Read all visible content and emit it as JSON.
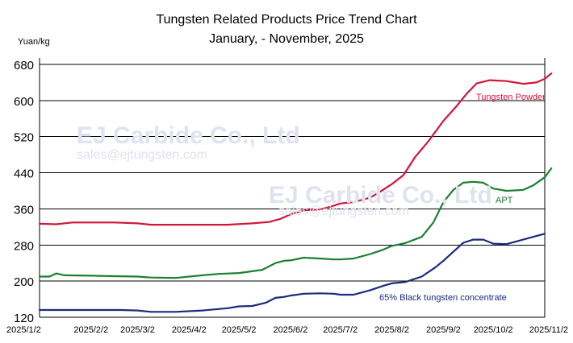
{
  "chart_data": {
    "type": "line",
    "title": "Tungsten Related Products Price Trend Chart",
    "subtitle": "January, - November, 2025",
    "ylabel": "Yuan/kg",
    "xlabel": "",
    "ylim": [
      120,
      680
    ],
    "yticks": [
      120,
      200,
      280,
      360,
      440,
      520,
      600,
      680
    ],
    "grid": true,
    "x_ticks": [
      "2025/1/2",
      "2025/2/2",
      "2025/3/2",
      "2025/4/2",
      "2025/5/2",
      "2025/6/2",
      "2025/7/2",
      "2025/8/2",
      "2025/9/2",
      "2025/10/2",
      "2025/11/2"
    ],
    "series": [
      {
        "name": "Tungsten Powder",
        "color": "#d0163c",
        "points": [
          [
            "2025/1/2",
            327
          ],
          [
            "2025/1/12",
            326
          ],
          [
            "2025/1/22",
            330
          ],
          [
            "2025/2/2",
            330
          ],
          [
            "2025/2/16",
            330
          ],
          [
            "2025/3/2",
            328
          ],
          [
            "2025/3/10",
            325
          ],
          [
            "2025/3/25",
            325
          ],
          [
            "2025/4/10",
            325
          ],
          [
            "2025/4/25",
            325
          ],
          [
            "2025/5/10",
            328
          ],
          [
            "2025/5/20",
            331
          ],
          [
            "2025/5/27",
            338
          ],
          [
            "2025/6/2",
            348
          ],
          [
            "2025/6/10",
            357
          ],
          [
            "2025/6/20",
            359
          ],
          [
            "2025/6/28",
            367
          ],
          [
            "2025/7/2",
            372
          ],
          [
            "2025/7/10",
            375
          ],
          [
            "2025/7/20",
            385
          ],
          [
            "2025/7/26",
            398
          ],
          [
            "2025/8/2",
            415
          ],
          [
            "2025/8/9",
            435
          ],
          [
            "2025/8/16",
            475
          ],
          [
            "2025/8/24",
            510
          ],
          [
            "2025/9/2",
            555
          ],
          [
            "2025/9/10",
            588
          ],
          [
            "2025/9/16",
            615
          ],
          [
            "2025/9/22",
            638
          ],
          [
            "2025/9/30",
            645
          ],
          [
            "2025/10/10",
            643
          ],
          [
            "2025/10/20",
            637
          ],
          [
            "2025/10/28",
            640
          ],
          [
            "2025/11/2",
            648
          ],
          [
            "2025/11/6",
            660
          ]
        ]
      },
      {
        "name": "APT",
        "color": "#1a8034",
        "points": [
          [
            "2025/1/2",
            210
          ],
          [
            "2025/1/8",
            210
          ],
          [
            "2025/1/12",
            217
          ],
          [
            "2025/1/17",
            213
          ],
          [
            "2025/2/2",
            212
          ],
          [
            "2025/2/16",
            211
          ],
          [
            "2025/3/2",
            210
          ],
          [
            "2025/3/10",
            208
          ],
          [
            "2025/3/25",
            207
          ],
          [
            "2025/4/10",
            213
          ],
          [
            "2025/4/20",
            216
          ],
          [
            "2025/5/2",
            218
          ],
          [
            "2025/5/16",
            225
          ],
          [
            "2025/5/24",
            240
          ],
          [
            "2025/5/29",
            245
          ],
          [
            "2025/6/2",
            246
          ],
          [
            "2025/6/10",
            252
          ],
          [
            "2025/6/20",
            250
          ],
          [
            "2025/6/28",
            248
          ],
          [
            "2025/7/2",
            248
          ],
          [
            "2025/7/10",
            250
          ],
          [
            "2025/7/20",
            260
          ],
          [
            "2025/7/28",
            270
          ],
          [
            "2025/8/2",
            278
          ],
          [
            "2025/8/10",
            284
          ],
          [
            "2025/8/20",
            298
          ],
          [
            "2025/8/27",
            330
          ],
          [
            "2025/9/2",
            375
          ],
          [
            "2025/9/8",
            402
          ],
          [
            "2025/9/14",
            418
          ],
          [
            "2025/9/20",
            420
          ],
          [
            "2025/9/26",
            418
          ],
          [
            "2025/10/2",
            405
          ],
          [
            "2025/10/10",
            400
          ],
          [
            "2025/10/20",
            402
          ],
          [
            "2025/10/26",
            412
          ],
          [
            "2025/11/2",
            430
          ],
          [
            "2025/11/6",
            450
          ]
        ]
      },
      {
        "name": "65% Black tungsten concentrate",
        "color": "#1b2c7c",
        "points": [
          [
            "2025/1/2",
            136
          ],
          [
            "2025/2/2",
            136
          ],
          [
            "2025/2/20",
            136
          ],
          [
            "2025/3/2",
            135
          ],
          [
            "2025/3/10",
            132
          ],
          [
            "2025/3/25",
            132
          ],
          [
            "2025/4/10",
            135
          ],
          [
            "2025/4/25",
            140
          ],
          [
            "2025/5/2",
            144
          ],
          [
            "2025/5/10",
            145
          ],
          [
            "2025/5/18",
            152
          ],
          [
            "2025/5/24",
            163
          ],
          [
            "2025/5/29",
            165
          ],
          [
            "2025/6/2",
            168
          ],
          [
            "2025/6/10",
            172
          ],
          [
            "2025/6/20",
            173
          ],
          [
            "2025/6/28",
            172
          ],
          [
            "2025/7/2",
            170
          ],
          [
            "2025/7/10",
            170
          ],
          [
            "2025/7/20",
            180
          ],
          [
            "2025/7/28",
            190
          ],
          [
            "2025/8/2",
            195
          ],
          [
            "2025/8/10",
            198
          ],
          [
            "2025/8/20",
            210
          ],
          [
            "2025/8/28",
            230
          ],
          [
            "2025/9/2",
            245
          ],
          [
            "2025/9/8",
            265
          ],
          [
            "2025/9/14",
            285
          ],
          [
            "2025/9/20",
            292
          ],
          [
            "2025/9/26",
            292
          ],
          [
            "2025/10/2",
            283
          ],
          [
            "2025/10/10",
            282
          ],
          [
            "2025/10/18",
            290
          ],
          [
            "2025/10/26",
            298
          ],
          [
            "2025/11/2",
            305
          ]
        ]
      }
    ]
  },
  "watermark": {
    "company": "EJ Carbide Co., Ltd",
    "email": "sales@ejtungsten.com"
  }
}
